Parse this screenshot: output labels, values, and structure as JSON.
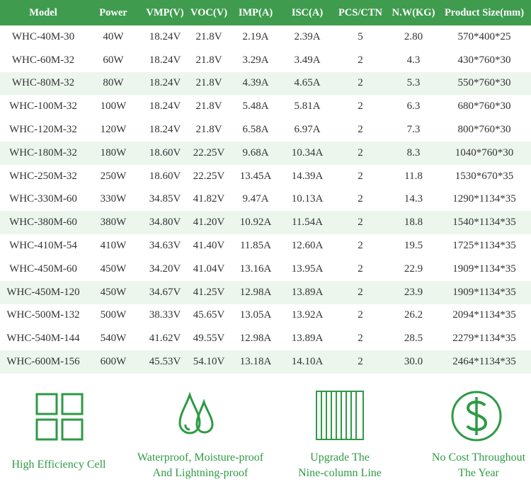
{
  "table": {
    "header": [
      "Model",
      "Power",
      "VMP(V)",
      "VOC(V)",
      "IMP(A)",
      "ISC(A)",
      "PCS/CTN",
      "N.W(KG)",
      "Product Size(mm)"
    ],
    "rows": [
      [
        "WHC-40M-30",
        "40W",
        "18.24V",
        "21.8V",
        "2.19A",
        "2.39A",
        "5",
        "2.80",
        "570*400*25"
      ],
      [
        "WHC-60M-32",
        "60W",
        "18.24V",
        "21.8V",
        "3.29A",
        "3.49A",
        "2",
        "4.3",
        "430*760*30"
      ],
      [
        "WHC-80M-32",
        "80W",
        "18.24V",
        "21.8V",
        "4.39A",
        "4.65A",
        "2",
        "5.3",
        "550*760*30"
      ],
      [
        "WHC-100M-32",
        "100W",
        "18.24V",
        "21.8V",
        "5.48A",
        "5.81A",
        "2",
        "6.3",
        "680*760*30"
      ],
      [
        "WHC-120M-32",
        "120W",
        "18.24V",
        "21.8V",
        "6.58A",
        "6.97A",
        "2",
        "7.3",
        "800*760*30"
      ],
      [
        "WHC-180M-32",
        "180W",
        "18.60V",
        "22.25V",
        "9.68A",
        "10.34A",
        "2",
        "8.3",
        "1040*760*30"
      ],
      [
        "WHC-250M-32",
        "250W",
        "18.60V",
        "22.25V",
        "13.45A",
        "14.39A",
        "2",
        "11.8",
        "1530*670*35"
      ],
      [
        "WHC-330M-60",
        "330W",
        "34.85V",
        "41.82V",
        "9.47A",
        "10.13A",
        "2",
        "14.3",
        "1290*1134*35"
      ],
      [
        "WHC-380M-60",
        "380W",
        "34.80V",
        "41.20V",
        "10.92A",
        "11.54A",
        "2",
        "18.8",
        "1540*1134*35"
      ],
      [
        "WHC-410M-54",
        "410W",
        "34.63V",
        "41.40V",
        "11.85A",
        "12.60A",
        "2",
        "19.5",
        "1725*1134*35"
      ],
      [
        "WHC-450M-60",
        "450W",
        "34.20V",
        "41.04V",
        "13.16A",
        "13.95A",
        "2",
        "22.9",
        "1909*1134*35"
      ],
      [
        "WHC-450M-120",
        "450W",
        "34.67V",
        "41.25V",
        "12.98A",
        "13.89A",
        "2",
        "23.9",
        "1909*1134*35"
      ],
      [
        "WHC-500M-132",
        "500W",
        "38.33V",
        "45.65V",
        "13.05A",
        "13.92A",
        "2",
        "26.2",
        "2094*1134*35"
      ],
      [
        "WHC-540M-144",
        "540W",
        "41.62V",
        "49.55V",
        "12.98A",
        "13.89A",
        "2",
        "28.5",
        "2279*1134*35"
      ],
      [
        "WHC-600M-156",
        "600W",
        "45.53V",
        "54.10V",
        "13.18A",
        "14.10A",
        "2",
        "30.0",
        "2464*1134*35"
      ]
    ]
  },
  "features": [
    {
      "lines": [
        "High Efficiency Cell"
      ]
    },
    {
      "lines": [
        "Waterproof, Moisture-proof",
        "And Lightning-proof"
      ]
    },
    {
      "lines": [
        "Upgrade The",
        "Nine-column Line"
      ]
    },
    {
      "lines": [
        "No Cost Throughout",
        "The Year"
      ]
    }
  ]
}
